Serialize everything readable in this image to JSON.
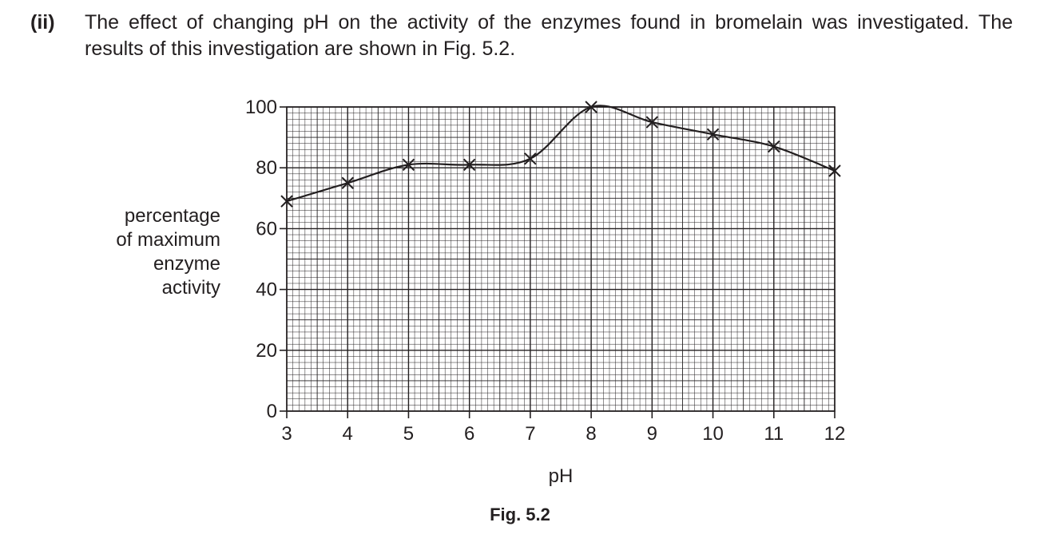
{
  "question": {
    "label": "(ii)",
    "text": "The effect of changing pH on the activity of the enzymes found in bromelain was investigated. The results of this investigation are shown in Fig. 5.2."
  },
  "figure": {
    "caption": "Fig. 5.2"
  },
  "chart_data": {
    "type": "line",
    "title": "",
    "xlabel": "pH",
    "ylabel": [
      "percentage",
      "of maximum",
      "enzyme",
      "activity"
    ],
    "xlim": [
      3,
      12
    ],
    "ylim": [
      0,
      100
    ],
    "x_ticks": [
      "3",
      "4",
      "5",
      "6",
      "7",
      "8",
      "9",
      "10",
      "11",
      "12"
    ],
    "y_ticks": [
      "0",
      "20",
      "40",
      "60",
      "80",
      "100"
    ],
    "grid": true,
    "marker": "x",
    "x": [
      3,
      4,
      5,
      6,
      7,
      8,
      9,
      10,
      11,
      12
    ],
    "values": [
      69,
      75,
      81,
      81,
      83,
      100,
      95,
      91,
      87,
      79
    ]
  }
}
